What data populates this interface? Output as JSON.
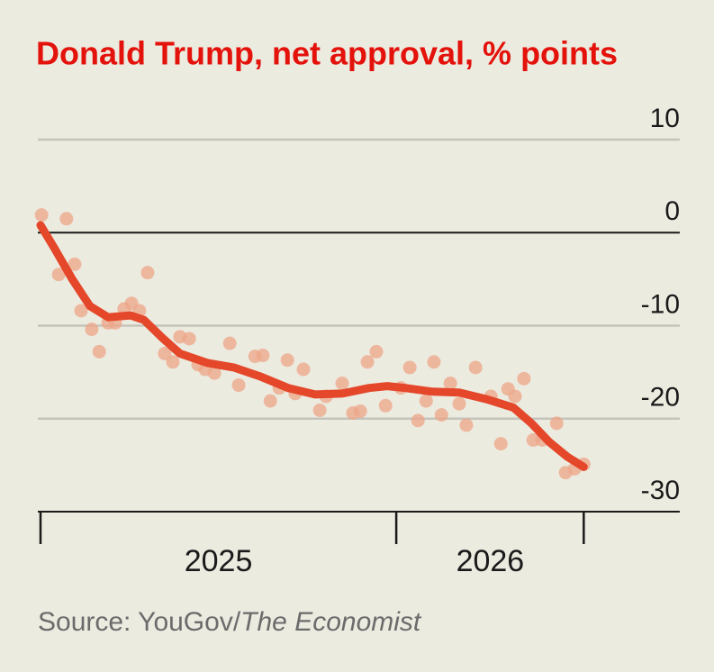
{
  "chart_data": {
    "type": "scatter",
    "title": "Donald Trump, net approval, % points",
    "source": {
      "prefix": "Source: YouGov/",
      "publication": "The Economist"
    },
    "xlim": [
      2025,
      2026.797
    ],
    "xtick_marks": [
      2025,
      2026,
      2026.527
    ],
    "period_labels": [
      {
        "value": 2025.5,
        "label": "2025"
      },
      {
        "value": 2026.264,
        "label": "2026"
      }
    ],
    "ylim": [
      -30,
      10
    ],
    "yticks": [
      10,
      0,
      -10,
      -20,
      -30
    ],
    "grid": true,
    "points": {
      "color": "#eea688",
      "x": [
        2025.003,
        2025.073,
        2025.051,
        2025.096,
        2025.114,
        2025.144,
        2025.165,
        2025.19,
        2025.21,
        2025.235,
        2025.256,
        2025.278,
        2025.301,
        2025.349,
        2025.372,
        2025.392,
        2025.418,
        2025.443,
        2025.463,
        2025.489,
        2025.532,
        2025.557,
        2025.603,
        2025.625,
        2025.646,
        2025.671,
        2025.694,
        2025.716,
        2025.739,
        2025.785,
        2025.803,
        2025.848,
        2025.878,
        2025.899,
        2025.919,
        2025.944,
        2025.97,
        2026.013,
        2026.038,
        2026.061,
        2026.084,
        2026.106,
        2026.127,
        2026.152,
        2026.177,
        2026.197,
        2026.223,
        2026.266,
        2026.294,
        2026.314,
        2026.334,
        2026.359,
        2026.385,
        2026.41,
        2026.451,
        2026.476,
        2026.501,
        2026.527
      ],
      "y": [
        1.9,
        1.5,
        -4.5,
        -3.4,
        -8.4,
        -10.4,
        -12.8,
        -9.7,
        -9.7,
        -8.2,
        -7.6,
        -8.4,
        -4.3,
        -13,
        -13.9,
        -11.2,
        -11.4,
        -14.2,
        -14.7,
        -15.1,
        -11.9,
        -16.4,
        -13.3,
        -13.2,
        -18.1,
        -16.7,
        -13.7,
        -17.3,
        -14.7,
        -19.1,
        -17.6,
        -16.2,
        -19.4,
        -19.2,
        -13.9,
        -12.8,
        -18.6,
        -16.7,
        -14.5,
        -20.2,
        -18.1,
        -13.9,
        -19.6,
        -16.2,
        -18.4,
        -20.7,
        -14.5,
        -17.6,
        -22.7,
        -16.8,
        -17.6,
        -15.7,
        -22.3,
        -22.3,
        -20.5,
        -25.8,
        -25.4,
        -24.9
      ]
    },
    "trend": {
      "color": "#e4472a",
      "x": [
        2025,
        2025.038,
        2025.089,
        2025.139,
        2025.19,
        2025.253,
        2025.291,
        2025.342,
        2025.392,
        2025.468,
        2025.544,
        2025.62,
        2025.696,
        2025.772,
        2025.848,
        2025.924,
        2025.975,
        2026.025,
        2026.101,
        2026.177,
        2026.253,
        2026.329,
        2026.38,
        2026.43,
        2026.481,
        2026.527
      ],
      "y": [
        0.8,
        -1.6,
        -5,
        -7.9,
        -9.1,
        -8.9,
        -9.4,
        -11.3,
        -13,
        -14,
        -14.5,
        -15.5,
        -16.7,
        -17.4,
        -17.3,
        -16.7,
        -16.5,
        -16.7,
        -17.1,
        -17.2,
        -17.9,
        -18.8,
        -20.5,
        -22.5,
        -24.1,
        -25.2
      ]
    }
  }
}
